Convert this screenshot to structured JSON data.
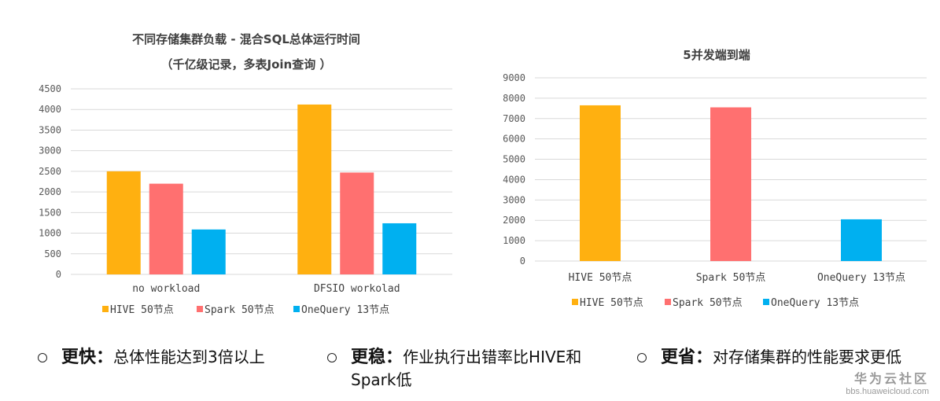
{
  "chart_data": [
    {
      "type": "bar",
      "title": "不同存储集群负载 - 混合SQL总体运行时间",
      "subtitle": "（千亿级记录，多表Join查询 ）",
      "categories": [
        "no workload",
        "DFSIO workolad"
      ],
      "series": [
        {
          "name": "HIVE 50节点",
          "values": [
            2500,
            4120
          ],
          "color": "#FFB010"
        },
        {
          "name": "Spark 50节点",
          "values": [
            2200,
            2470
          ],
          "color": "#FF7070"
        },
        {
          "name": "OneQuery 13节点",
          "values": [
            1090,
            1240
          ],
          "color": "#00B0F0"
        }
      ],
      "ylim": [
        0,
        4500
      ],
      "yticks": [
        "0",
        "500",
        "1000",
        "1500",
        "2000",
        "2500",
        "3000",
        "3500",
        "4000",
        "4500"
      ],
      "ytick_values": [
        0,
        500,
        1000,
        1500,
        2000,
        2500,
        3000,
        3500,
        4000,
        4500
      ],
      "grid": true,
      "legend": "bottom"
    },
    {
      "type": "bar",
      "title": "5并发端到端",
      "categories": [
        "HIVE 50节点",
        "Spark 50节点",
        "OneQuery 13节点"
      ],
      "series": [
        {
          "name": "HIVE 50节点",
          "values": [
            7650,
            null,
            null
          ],
          "color": "#FFB010"
        },
        {
          "name": "Spark 50节点",
          "values": [
            null,
            7550,
            null
          ],
          "color": "#FF7070"
        },
        {
          "name": "OneQuery 13节点",
          "values": [
            null,
            null,
            2050
          ],
          "color": "#00B0F0"
        }
      ],
      "ylim": [
        0,
        9000
      ],
      "yticks": [
        "0",
        "1000",
        "2000",
        "3000",
        "4000",
        "5000",
        "6000",
        "7000",
        "8000",
        "9000"
      ],
      "ytick_values": [
        0,
        1000,
        2000,
        3000,
        4000,
        5000,
        6000,
        7000,
        8000,
        9000
      ],
      "grid": true,
      "legend": "bottom"
    }
  ],
  "bullets": [
    {
      "head": "更快",
      "sep": "：",
      "text": "总体性能达到3倍以上"
    },
    {
      "head": "更稳",
      "sep": "：",
      "text": "作业执行出错率比HIVE和Spark低"
    },
    {
      "head": "更省",
      "sep": "：",
      "text": "对存储集群的性能要求更低"
    }
  ],
  "watermark": {
    "name": "华为云社区",
    "url": "bbs.huaweicloud.com"
  }
}
